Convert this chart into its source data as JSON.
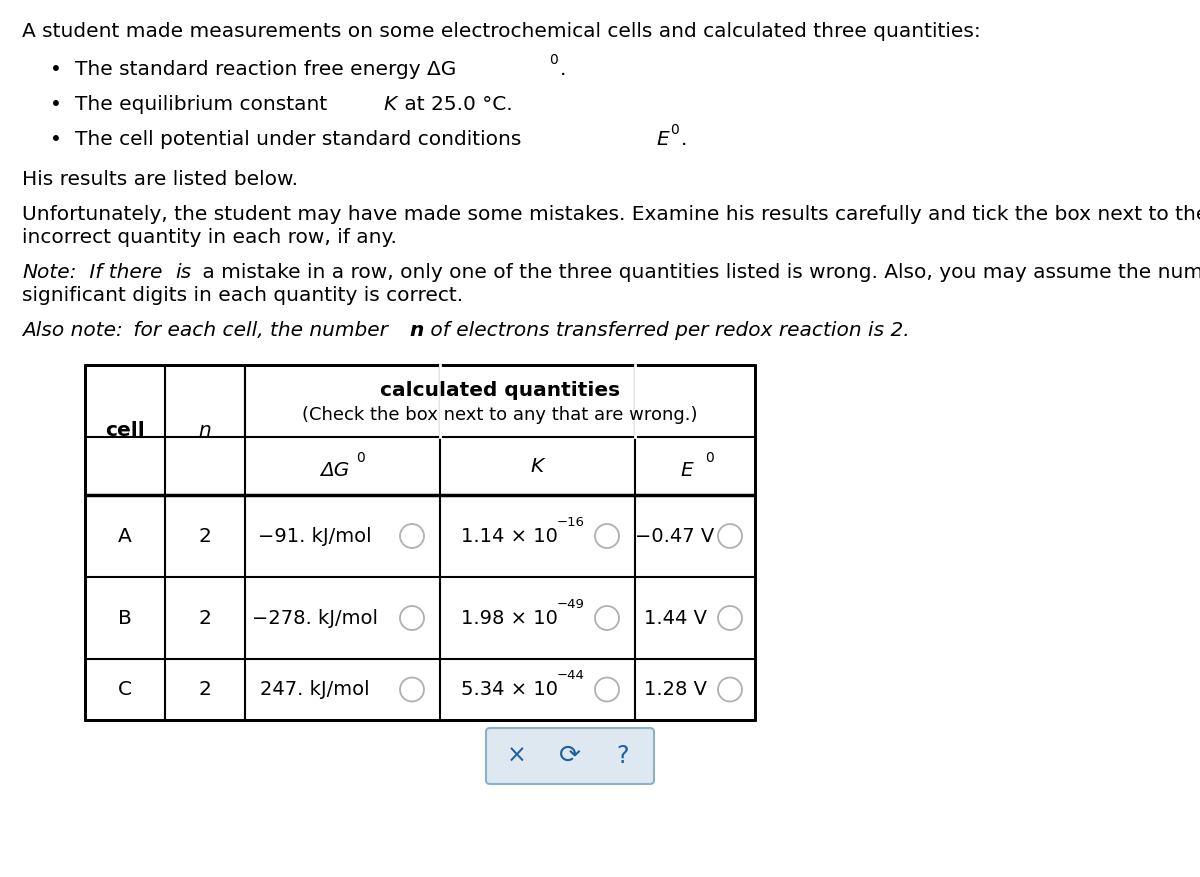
{
  "title_text": "A student made measurements on some electrochemical cells and calculated three quantities:",
  "para1": "His results are listed below.",
  "para2a": "Unfortunately, the student may have made some mistakes. Examine his results carefully and tick the box next to the",
  "para2b": "incorrect quantity in each row, if any.",
  "note1a": "Note:",
  "note1b": " If there ",
  "note1c": "is",
  "note1d": " a mistake in a row, only one of the three quantities listed is wrong. Also, you may assume the number of",
  "note1e": "significant digits in each quantity is correct.",
  "note2a": "Also note:",
  "note2b": " for each cell, the number ",
  "note2c": "n",
  "note2d": " of electrons transferred per redox reaction is 2.",
  "table_header_main": "calculated quantities",
  "table_header_sub": "(Check the box next to any that are wrong.)",
  "row_labels": [
    "A",
    "B",
    "C"
  ],
  "n_values": [
    "2",
    "2",
    "2"
  ],
  "dG_values": [
    "−91. kJ/mol",
    "−278. kJ/mol",
    "247. kJ/mol"
  ],
  "K_mantissa": [
    "1.14 × 10",
    "1.98 × 10",
    "5.34 × 10"
  ],
  "K_exponent": [
    "−16",
    "−49",
    "−44"
  ],
  "E_values": [
    "−0.47 V",
    "1.44 V",
    "1.28 V"
  ],
  "bg_color": "#ffffff",
  "text_color": "#000000",
  "circle_edge_color": "#b0b0b0",
  "bottom_box_color": "#dde8f0",
  "bottom_box_border": "#8ab0cc",
  "symbol_color": "#2060a0"
}
